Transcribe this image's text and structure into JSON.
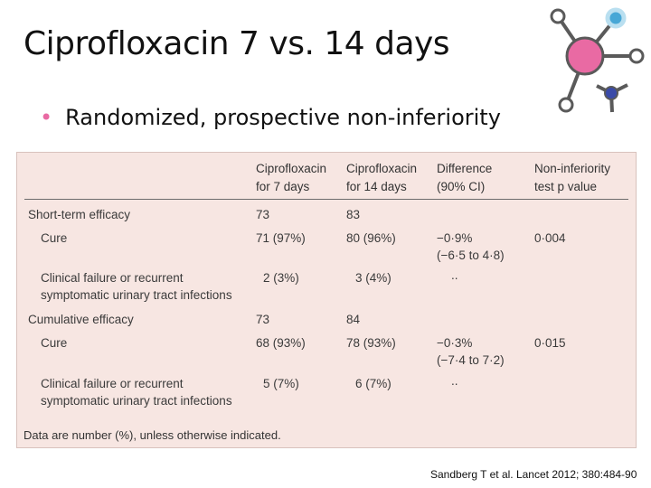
{
  "slide": {
    "title": "Ciprofloxacin 7 vs. 14 days",
    "bullet": "Randomized, prospective non-inferiority",
    "citation": "Sandberg T et al. Lancet 2012; 380:484-90"
  },
  "table": {
    "headers": {
      "col1": [
        "Ciprofloxacin",
        "for 7 days"
      ],
      "col2": [
        "Ciprofloxacin",
        "for 14 days"
      ],
      "col3": [
        "Difference",
        "(90% CI)"
      ],
      "col4": [
        "Non-inferiority",
        "test p value"
      ]
    },
    "rows": {
      "short_term": {
        "label": "Short-term efficacy",
        "c1": "73",
        "c2": "83"
      },
      "cure1": {
        "label": "Cure",
        "c1": "71 (97%)",
        "c2": "80 (96%)",
        "c3a": "−0·9%",
        "c3b": "(−6·5 to 4·8)",
        "c4": "0·004"
      },
      "fail1": {
        "label_a": "Clinical failure or recurrent",
        "label_b": "symptomatic urinary tract infections",
        "c1": "2 (3%)",
        "c2": "3 (4%)",
        "c3": ".."
      },
      "cumulative": {
        "label": "Cumulative efficacy",
        "c1": "73",
        "c2": "84"
      },
      "cure2": {
        "label": "Cure",
        "c1": "68 (93%)",
        "c2": "78 (93%)",
        "c3a": "−0·3%",
        "c3b": "(−7·4 to 7·2)",
        "c4": "0·015"
      },
      "fail2": {
        "label_a": "Clinical failure or recurrent",
        "label_b": "symptomatic urinary tract infections",
        "c1": "5 (7%)",
        "c2": "6 (7%)",
        "c3": ".."
      }
    },
    "footnote": "Data are number (%), unless otherwise indicated."
  },
  "colors": {
    "accent_pink": "#e96aa3",
    "logo_blue": "#47a7d6",
    "logo_navy": "#3a4aa8",
    "table_bg": "#f7e6e2"
  },
  "icons": {
    "logo": "molecule-logo-icon"
  }
}
